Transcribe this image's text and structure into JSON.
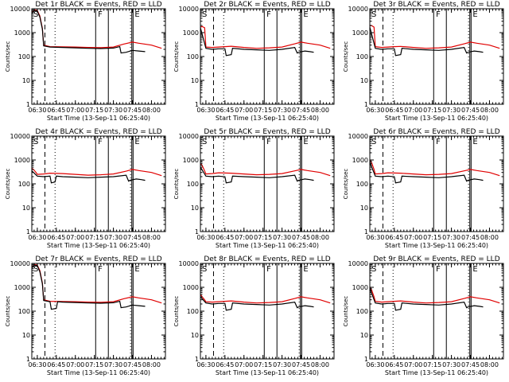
{
  "colors": {
    "events": "#000000",
    "lld": "#e00000",
    "axes": "#000000",
    "background": "#ffffff"
  },
  "common": {
    "ylabel": "Counts/sec",
    "xlabel": "Start Time (13-Sep-11 06:25:40)",
    "x_tick_labels": [
      "06:30",
      "06:45",
      "07:00",
      "07:15",
      "07:30",
      "07:45",
      "08:00"
    ],
    "x_tick_minutes": [
      0,
      15,
      30,
      45,
      60,
      75,
      90
    ],
    "y_tick_labels": [
      "1",
      "10",
      "100",
      "1000",
      "10000"
    ],
    "y_tick_values": [
      1,
      10,
      100,
      1000,
      10000
    ],
    "x_range_minutes": [
      -4.33,
      101
    ],
    "ylim": [
      1,
      10000
    ],
    "y_scale": "log",
    "markers": [
      {
        "label": "S",
        "minute": -4.33,
        "style": "box-label"
      },
      {
        "label": "F",
        "minute": 46.5,
        "style": "box-label"
      },
      {
        "label": "E",
        "minute": 75.5,
        "style": "box-label"
      }
    ],
    "vlines": [
      {
        "minute": 6,
        "style": "dashed"
      },
      {
        "minute": 14,
        "style": "dotted"
      },
      {
        "minute": 46,
        "style": "solid"
      },
      {
        "minute": 56,
        "style": "solid"
      },
      {
        "minute": 73.5,
        "style": "dotted"
      },
      {
        "minute": 74.5,
        "style": "solid"
      },
      {
        "minute": 75.5,
        "style": "solid"
      }
    ]
  },
  "chart_data": [
    {
      "type": "line",
      "title": "Det 1r BLACK = Events, RED = LLD",
      "x_unit": "minutes after 06:30",
      "series": [
        {
          "color": "red",
          "x": [
            -4.33,
            -2,
            0,
            2,
            4,
            5,
            10,
            20,
            30,
            40,
            50,
            60,
            68,
            75,
            80,
            90,
            98
          ],
          "y": [
            7000,
            9000,
            8500,
            5000,
            1500,
            300,
            260,
            255,
            250,
            240,
            235,
            250,
            330,
            400,
            360,
            300,
            220
          ]
        },
        {
          "color": "black",
          "x": [
            -4.33,
            -2,
            0,
            2,
            4,
            5,
            10,
            20,
            30,
            40,
            50,
            60,
            65,
            66,
            70,
            75,
            80,
            85
          ],
          "y": [
            6500,
            8500,
            8000,
            4500,
            1400,
            280,
            250,
            240,
            230,
            220,
            215,
            225,
            260,
            140,
            150,
            180,
            170,
            160
          ]
        }
      ]
    },
    {
      "type": "line",
      "title": "Det 2r BLACK = Events, RED = LLD",
      "x_unit": "minutes after 06:30",
      "series": [
        {
          "color": "red",
          "x": [
            -4.33,
            -3,
            -1,
            0,
            5,
            10,
            15,
            20,
            30,
            40,
            50,
            60,
            70,
            75,
            80,
            90,
            98
          ],
          "y": [
            1700,
            1800,
            1600,
            250,
            240,
            250,
            260,
            270,
            240,
            220,
            230,
            250,
            340,
            400,
            360,
            300,
            220
          ]
        },
        {
          "color": "black",
          "x": [
            -4.33,
            0,
            5,
            10,
            15,
            16,
            20,
            21,
            30,
            40,
            50,
            60,
            70,
            72,
            73,
            78,
            82,
            85
          ],
          "y": [
            1600,
            220,
            200,
            210,
            210,
            110,
            120,
            220,
            200,
            190,
            180,
            200,
            240,
            140,
            150,
            170,
            160,
            150
          ]
        }
      ]
    },
    {
      "type": "line",
      "title": "Det 3r BLACK = Events, RED = LLD",
      "x_unit": "minutes after 06:30",
      "series": [
        {
          "color": "red",
          "x": [
            -4.33,
            -3,
            -1,
            0,
            5,
            10,
            15,
            20,
            30,
            40,
            50,
            60,
            70,
            75,
            80,
            90,
            98
          ],
          "y": [
            1900,
            2000,
            1700,
            260,
            240,
            250,
            260,
            265,
            240,
            220,
            230,
            250,
            340,
            400,
            360,
            300,
            220
          ]
        },
        {
          "color": "black",
          "x": [
            -4.33,
            0,
            5,
            10,
            15,
            16,
            20,
            21,
            30,
            40,
            50,
            60,
            70,
            72,
            73,
            78,
            82,
            85
          ],
          "y": [
            1700,
            220,
            200,
            210,
            210,
            110,
            120,
            220,
            200,
            190,
            180,
            200,
            240,
            140,
            150,
            170,
            160,
            150
          ]
        }
      ]
    },
    {
      "type": "line",
      "title": "Det 4r BLACK = Events, RED = LLD",
      "x_unit": "minutes after 06:30",
      "series": [
        {
          "color": "red",
          "x": [
            -4.33,
            -3,
            -1,
            0,
            5,
            10,
            20,
            30,
            40,
            50,
            60,
            70,
            75,
            80,
            90,
            98
          ],
          "y": [
            450,
            400,
            300,
            250,
            260,
            280,
            270,
            250,
            230,
            240,
            260,
            340,
            400,
            360,
            300,
            220
          ]
        },
        {
          "color": "black",
          "x": [
            -4.33,
            0,
            5,
            10,
            11,
            14,
            15,
            20,
            30,
            40,
            50,
            60,
            70,
            72,
            73,
            78,
            82,
            85
          ],
          "y": [
            350,
            210,
            200,
            210,
            110,
            120,
            210,
            200,
            190,
            180,
            190,
            200,
            230,
            130,
            140,
            160,
            150,
            140
          ]
        }
      ]
    },
    {
      "type": "line",
      "title": "Det 5r BLACK = Events, RED = LLD",
      "x_unit": "minutes after 06:30",
      "series": [
        {
          "color": "red",
          "x": [
            -4.33,
            -3,
            -1,
            0,
            5,
            10,
            20,
            30,
            40,
            50,
            60,
            70,
            75,
            80,
            90,
            98
          ],
          "y": [
            700,
            600,
            350,
            260,
            270,
            290,
            280,
            260,
            240,
            250,
            270,
            350,
            400,
            360,
            300,
            220
          ]
        },
        {
          "color": "black",
          "x": [
            -4.33,
            0,
            5,
            10,
            15,
            16,
            20,
            21,
            30,
            40,
            50,
            60,
            70,
            72,
            73,
            78,
            82,
            85
          ],
          "y": [
            500,
            210,
            200,
            210,
            200,
            110,
            120,
            210,
            200,
            190,
            180,
            200,
            230,
            130,
            140,
            160,
            150,
            140
          ]
        }
      ]
    },
    {
      "type": "line",
      "title": "Det 6r BLACK = Events, RED = LLD",
      "x_unit": "minutes after 06:30",
      "series": [
        {
          "color": "red",
          "x": [
            -4.33,
            -3,
            -1,
            0,
            5,
            10,
            20,
            30,
            40,
            50,
            60,
            70,
            75,
            80,
            90,
            98
          ],
          "y": [
            1000,
            800,
            400,
            260,
            270,
            290,
            280,
            260,
            240,
            250,
            270,
            350,
            400,
            360,
            300,
            220
          ]
        },
        {
          "color": "black",
          "x": [
            -4.33,
            0,
            5,
            10,
            15,
            16,
            20,
            21,
            30,
            40,
            50,
            60,
            70,
            72,
            73,
            78,
            82,
            85
          ],
          "y": [
            800,
            210,
            200,
            210,
            200,
            110,
            120,
            210,
            200,
            190,
            180,
            200,
            230,
            130,
            140,
            160,
            150,
            140
          ]
        }
      ]
    },
    {
      "type": "line",
      "title": "Det 7r BLACK = Events, RED = LLD",
      "x_unit": "minutes after 06:30",
      "series": [
        {
          "color": "red",
          "x": [
            -4.33,
            -2,
            0,
            2,
            4,
            5,
            10,
            20,
            30,
            40,
            50,
            60,
            68,
            75,
            80,
            90,
            98
          ],
          "y": [
            7000,
            9000,
            8500,
            5000,
            1500,
            300,
            260,
            255,
            250,
            240,
            235,
            250,
            330,
            400,
            360,
            300,
            220
          ]
        },
        {
          "color": "black",
          "x": [
            -4.33,
            -2,
            0,
            2,
            4,
            5,
            10,
            11,
            15,
            16,
            20,
            30,
            40,
            50,
            60,
            65,
            66,
            70,
            75,
            80,
            85
          ],
          "y": [
            6500,
            8500,
            8000,
            4500,
            1400,
            280,
            250,
            120,
            130,
            250,
            240,
            230,
            220,
            215,
            225,
            260,
            140,
            150,
            180,
            170,
            160
          ]
        }
      ]
    },
    {
      "type": "line",
      "title": "Det 8r BLACK = Events, RED = LLD",
      "x_unit": "minutes after 06:30",
      "series": [
        {
          "color": "red",
          "x": [
            -4.33,
            -3,
            -1,
            0,
            5,
            10,
            15,
            20,
            30,
            40,
            50,
            60,
            70,
            75,
            80,
            90,
            98
          ],
          "y": [
            500,
            400,
            300,
            250,
            240,
            250,
            260,
            270,
            240,
            220,
            230,
            250,
            340,
            400,
            360,
            300,
            220
          ]
        },
        {
          "color": "black",
          "x": [
            -4.33,
            0,
            5,
            10,
            15,
            16,
            20,
            21,
            30,
            40,
            50,
            60,
            70,
            72,
            73,
            78,
            82,
            85
          ],
          "y": [
            400,
            220,
            200,
            210,
            210,
            110,
            120,
            220,
            200,
            190,
            180,
            200,
            240,
            140,
            150,
            170,
            160,
            150
          ]
        }
      ]
    },
    {
      "type": "line",
      "title": "Det 9r BLACK = Events, RED = LLD",
      "x_unit": "minutes after 06:30",
      "series": [
        {
          "color": "red",
          "x": [
            -4.33,
            -3,
            -1,
            0,
            5,
            10,
            15,
            20,
            30,
            40,
            50,
            60,
            70,
            75,
            80,
            90,
            98
          ],
          "y": [
            1000,
            800,
            400,
            260,
            240,
            250,
            260,
            270,
            240,
            220,
            230,
            250,
            340,
            400,
            360,
            300,
            220
          ]
        },
        {
          "color": "black",
          "x": [
            -4.33,
            0,
            5,
            10,
            15,
            16,
            20,
            21,
            30,
            40,
            50,
            60,
            70,
            72,
            73,
            78,
            82,
            85
          ],
          "y": [
            900,
            220,
            200,
            210,
            210,
            110,
            120,
            220,
            200,
            190,
            180,
            200,
            240,
            140,
            150,
            170,
            160,
            150
          ]
        }
      ]
    }
  ]
}
